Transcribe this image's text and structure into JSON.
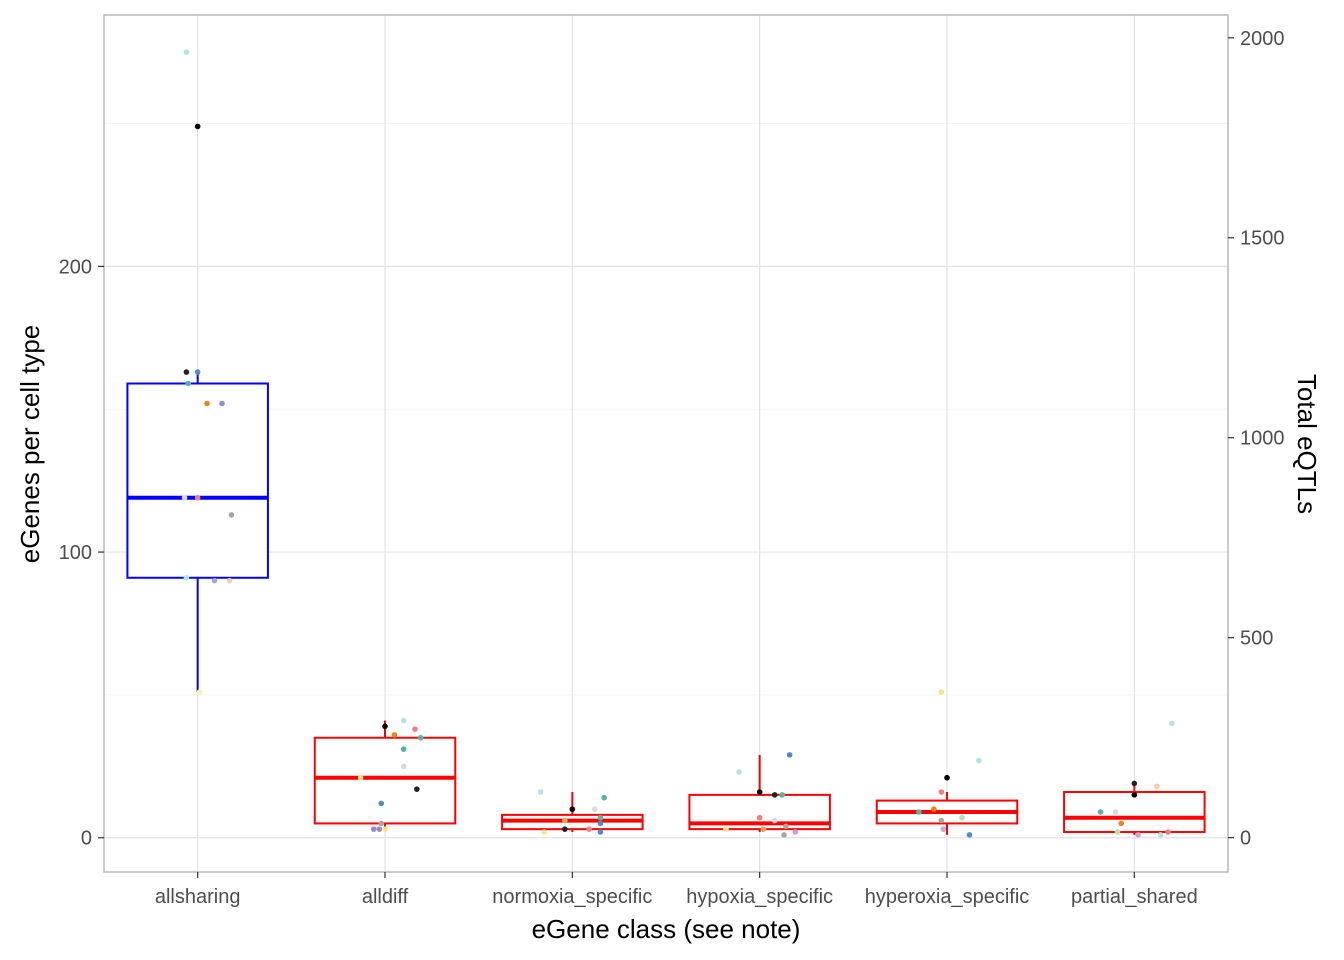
{
  "chart_data": {
    "type": "box",
    "xlabel": "eGene class (see note)",
    "ylabel": "eGenes per cell type",
    "y2label": "Total eQTLs",
    "categories": [
      "allsharing",
      "alldiff",
      "normoxia_specific",
      "hypoxia_specific",
      "hyperoxia_specific",
      "partial_shared"
    ],
    "ylim": [
      -12,
      288
    ],
    "yticks": [
      0,
      100,
      200
    ],
    "y2lim": [
      -86,
      2057
    ],
    "y2ticks": [
      0,
      500,
      1000,
      1500,
      2000
    ],
    "grid": true,
    "boxes": [
      {
        "category": "allsharing",
        "min": 51,
        "q1": 91,
        "median": 119,
        "q3": 159,
        "max": 163,
        "color": "#0000ff"
      },
      {
        "category": "alldiff",
        "min": 3,
        "q1": 5,
        "median": 21,
        "q3": 35,
        "max": 41,
        "color": "#ff0000"
      },
      {
        "category": "normoxia_specific",
        "min": 2,
        "q1": 3,
        "median": 6,
        "q3": 8,
        "max": 16,
        "color": "#ff0000"
      },
      {
        "category": "hypoxia_specific",
        "min": 2,
        "q1": 3,
        "median": 5,
        "q3": 15,
        "max": 29,
        "color": "#ff0000"
      },
      {
        "category": "hyperoxia_specific",
        "min": 1,
        "q1": 5,
        "median": 9,
        "q3": 13,
        "max": 16,
        "color": "#ff0000"
      },
      {
        "category": "partial_shared",
        "min": 1,
        "q1": 2,
        "median": 7,
        "q3": 16,
        "max": 19,
        "color": "#ff0000"
      }
    ],
    "points": [
      {
        "category": "allsharing",
        "offset": -0.06,
        "y": 275,
        "color": "#b2e6dd"
      },
      {
        "category": "allsharing",
        "offset": 0.0,
        "y": 249,
        "color": "#000000"
      },
      {
        "category": "allsharing",
        "offset": -0.06,
        "y": 163,
        "color": "#222222"
      },
      {
        "category": "allsharing",
        "offset": 0.0,
        "y": 163,
        "color": "#4f8cc2"
      },
      {
        "category": "allsharing",
        "offset": -0.05,
        "y": 159,
        "color": "#59b3a3"
      },
      {
        "category": "allsharing",
        "offset": 0.05,
        "y": 152,
        "color": "#e8851f"
      },
      {
        "category": "allsharing",
        "offset": 0.13,
        "y": 152,
        "color": "#9a8cc3"
      },
      {
        "category": "allsharing",
        "offset": -0.07,
        "y": 119,
        "color": "#d9d9d9"
      },
      {
        "category": "allsharing",
        "offset": 0.0,
        "y": 119,
        "color": "#f08080"
      },
      {
        "category": "allsharing",
        "offset": 0.18,
        "y": 113,
        "color": "#a6a6a6"
      },
      {
        "category": "allsharing",
        "offset": -0.06,
        "y": 91,
        "color": "#b2e6dd"
      },
      {
        "category": "allsharing",
        "offset": 0.09,
        "y": 90,
        "color": "#a7a3d6"
      },
      {
        "category": "allsharing",
        "offset": 0.17,
        "y": 90,
        "color": "#fbcaa6"
      },
      {
        "category": "allsharing",
        "offset": 0.01,
        "y": 51,
        "color": "#fff2a6"
      },
      {
        "category": "alldiff",
        "offset": 0.1,
        "y": 41,
        "color": "#b2e6dd"
      },
      {
        "category": "alldiff",
        "offset": 0.0,
        "y": 39,
        "color": "#000000"
      },
      {
        "category": "alldiff",
        "offset": 0.16,
        "y": 38,
        "color": "#f08080"
      },
      {
        "category": "alldiff",
        "offset": 0.05,
        "y": 36,
        "color": "#e8851f"
      },
      {
        "category": "alldiff",
        "offset": 0.19,
        "y": 35,
        "color": "#59b3a3"
      },
      {
        "category": "alldiff",
        "offset": 0.1,
        "y": 31,
        "color": "#59b3a3"
      },
      {
        "category": "alldiff",
        "offset": 0.1,
        "y": 25,
        "color": "#d9d9d9"
      },
      {
        "category": "alldiff",
        "offset": -0.13,
        "y": 21,
        "color": "#ffe08a"
      },
      {
        "category": "alldiff",
        "offset": 0.17,
        "y": 17,
        "color": "#222222"
      },
      {
        "category": "alldiff",
        "offset": -0.02,
        "y": 12,
        "color": "#4f8cc2"
      },
      {
        "category": "alldiff",
        "offset": -0.02,
        "y": 5,
        "color": "#a6a6a6"
      },
      {
        "category": "alldiff",
        "offset": -0.06,
        "y": 3,
        "color": "#9a8cc3"
      },
      {
        "category": "alldiff",
        "offset": -0.03,
        "y": 3,
        "color": "#9a8cc3"
      },
      {
        "category": "alldiff",
        "offset": 0.0,
        "y": 3,
        "color": "#ffe08a"
      },
      {
        "category": "normoxia_specific",
        "offset": -0.17,
        "y": 16,
        "color": "#b2e6dd"
      },
      {
        "category": "normoxia_specific",
        "offset": 0.17,
        "y": 14,
        "color": "#59b3a3"
      },
      {
        "category": "normoxia_specific",
        "offset": 0.0,
        "y": 10,
        "color": "#000000"
      },
      {
        "category": "normoxia_specific",
        "offset": 0.12,
        "y": 10,
        "color": "#d9d9d9"
      },
      {
        "category": "normoxia_specific",
        "offset": 0.15,
        "y": 7,
        "color": "#59b3a3"
      },
      {
        "category": "normoxia_specific",
        "offset": -0.04,
        "y": 6,
        "color": "#e8a15a"
      },
      {
        "category": "normoxia_specific",
        "offset": 0.15,
        "y": 5,
        "color": "#4f8cc2"
      },
      {
        "category": "normoxia_specific",
        "offset": -0.04,
        "y": 3,
        "color": "#222222"
      },
      {
        "category": "normoxia_specific",
        "offset": 0.09,
        "y": 3,
        "color": "#f08080"
      },
      {
        "category": "normoxia_specific",
        "offset": -0.15,
        "y": 2,
        "color": "#ffe08a"
      },
      {
        "category": "normoxia_specific",
        "offset": 0.15,
        "y": 2,
        "color": "#4f8cc2"
      },
      {
        "category": "hypoxia_specific",
        "offset": 0.16,
        "y": 29,
        "color": "#4f8cc2"
      },
      {
        "category": "hypoxia_specific",
        "offset": -0.11,
        "y": 23,
        "color": "#b2e6dd"
      },
      {
        "category": "hypoxia_specific",
        "offset": 0.0,
        "y": 16,
        "color": "#000000"
      },
      {
        "category": "hypoxia_specific",
        "offset": 0.08,
        "y": 15,
        "color": "#222222"
      },
      {
        "category": "hypoxia_specific",
        "offset": 0.12,
        "y": 15,
        "color": "#59b3a3"
      },
      {
        "category": "hypoxia_specific",
        "offset": 0.0,
        "y": 7,
        "color": "#f08080"
      },
      {
        "category": "hypoxia_specific",
        "offset": 0.08,
        "y": 6,
        "color": "#d9d9d9"
      },
      {
        "category": "hypoxia_specific",
        "offset": 0.14,
        "y": 4,
        "color": "#a6a6a6"
      },
      {
        "category": "hypoxia_specific",
        "offset": -0.18,
        "y": 3,
        "color": "#ffe08a"
      },
      {
        "category": "hypoxia_specific",
        "offset": 0.02,
        "y": 3,
        "color": "#e8a15a"
      },
      {
        "category": "hypoxia_specific",
        "offset": 0.13,
        "y": 1,
        "color": "#a6a6a6"
      },
      {
        "category": "hypoxia_specific",
        "offset": 0.19,
        "y": 2,
        "color": "#c8a2d6"
      },
      {
        "category": "hyperoxia_specific",
        "offset": -0.03,
        "y": 51,
        "color": "#ffe08a"
      },
      {
        "category": "hyperoxia_specific",
        "offset": 0.17,
        "y": 27,
        "color": "#b2e6dd"
      },
      {
        "category": "hyperoxia_specific",
        "offset": 0.0,
        "y": 21,
        "color": "#000000"
      },
      {
        "category": "hyperoxia_specific",
        "offset": -0.03,
        "y": 16,
        "color": "#f08080"
      },
      {
        "category": "hyperoxia_specific",
        "offset": -0.07,
        "y": 10,
        "color": "#e8851f"
      },
      {
        "category": "hyperoxia_specific",
        "offset": -0.15,
        "y": 9,
        "color": "#59b3a3"
      },
      {
        "category": "hyperoxia_specific",
        "offset": 0.08,
        "y": 7,
        "color": "#b2dfb0"
      },
      {
        "category": "hyperoxia_specific",
        "offset": -0.03,
        "y": 6,
        "color": "#a6a6a6"
      },
      {
        "category": "hyperoxia_specific",
        "offset": -0.02,
        "y": 3,
        "color": "#c8a2d6"
      },
      {
        "category": "hyperoxia_specific",
        "offset": 0.12,
        "y": 1,
        "color": "#4f8cc2"
      },
      {
        "category": "partial_shared",
        "offset": 0.2,
        "y": 40,
        "color": "#b2e6dd"
      },
      {
        "category": "partial_shared",
        "offset": 0.0,
        "y": 19,
        "color": "#222222"
      },
      {
        "category": "partial_shared",
        "offset": 0.12,
        "y": 18,
        "color": "#fbcaa6"
      },
      {
        "category": "partial_shared",
        "offset": 0.0,
        "y": 15,
        "color": "#000000"
      },
      {
        "category": "partial_shared",
        "offset": -0.18,
        "y": 9,
        "color": "#59b3a3"
      },
      {
        "category": "partial_shared",
        "offset": -0.1,
        "y": 9,
        "color": "#d9d9d9"
      },
      {
        "category": "partial_shared",
        "offset": -0.07,
        "y": 5,
        "color": "#e8851f"
      },
      {
        "category": "partial_shared",
        "offset": -0.09,
        "y": 2,
        "color": "#b2dfb0"
      },
      {
        "category": "partial_shared",
        "offset": 0.02,
        "y": 1,
        "color": "#c8a2d6"
      },
      {
        "category": "partial_shared",
        "offset": 0.14,
        "y": 1,
        "color": "#b2e6dd"
      },
      {
        "category": "partial_shared",
        "offset": 0.18,
        "y": 2,
        "color": "#f08080"
      }
    ]
  }
}
